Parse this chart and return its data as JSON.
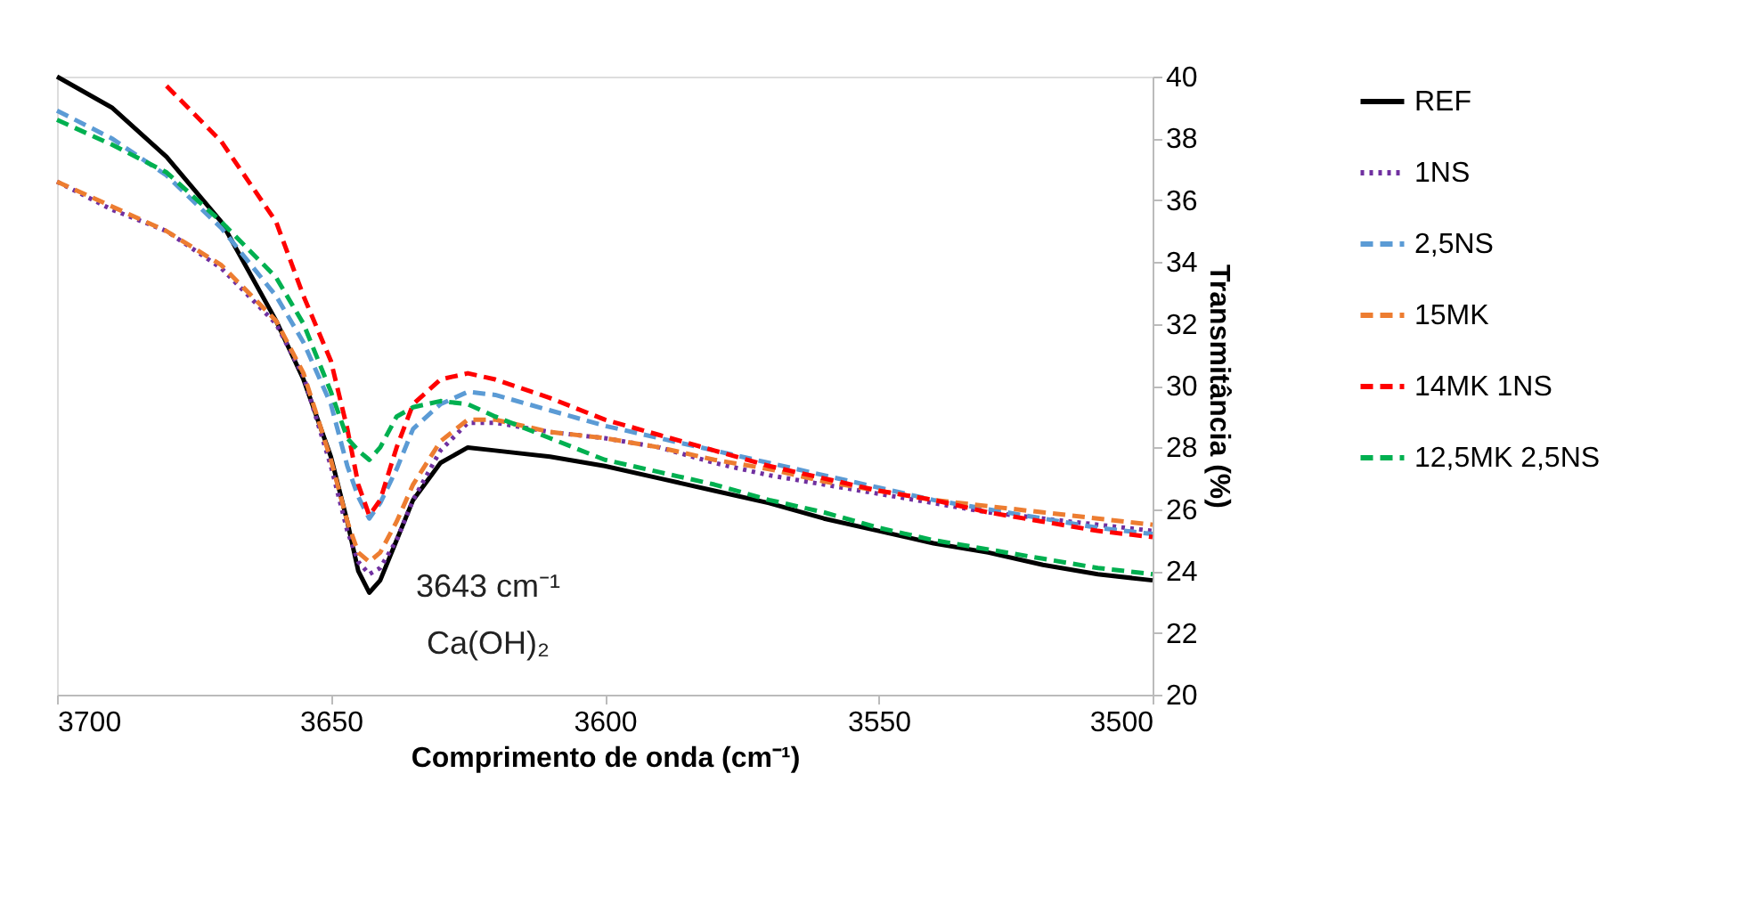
{
  "chart_data": {
    "type": "line",
    "xlabel": "Comprimento de onda (cm⁻¹)",
    "ylabel": "Transmitância (%)",
    "x": [
      3700,
      3690,
      3680,
      3670,
      3660,
      3655,
      3650,
      3647,
      3645,
      3643,
      3641,
      3638,
      3635,
      3630,
      3625,
      3620,
      3610,
      3600,
      3590,
      3580,
      3570,
      3560,
      3550,
      3540,
      3530,
      3520,
      3510,
      3500
    ],
    "xlim": [
      3700,
      3500
    ],
    "xticks": [
      3700,
      3650,
      3600,
      3550,
      3500
    ],
    "ylim": [
      20,
      40
    ],
    "yticks": [
      20,
      22,
      24,
      26,
      28,
      30,
      32,
      34,
      36,
      38,
      40
    ],
    "grid": false,
    "legend": "right",
    "marker": "none",
    "series": [
      {
        "name": "REF",
        "color": "#000000",
        "line_style": "solid",
        "values": [
          40.0,
          39.0,
          37.4,
          35.3,
          32.1,
          30.2,
          27.7,
          25.6,
          24.0,
          23.3,
          23.7,
          25.0,
          26.3,
          27.5,
          28.0,
          27.9,
          27.7,
          27.4,
          27.0,
          26.6,
          26.2,
          25.7,
          25.3,
          24.9,
          24.6,
          24.2,
          23.9,
          23.7
        ]
      },
      {
        "name": "1NS",
        "color": "#7030a0",
        "line_style": "dotted",
        "values": [
          36.6,
          35.7,
          35.0,
          33.8,
          32.0,
          30.3,
          27.4,
          25.3,
          24.3,
          23.9,
          24.1,
          25.0,
          26.3,
          27.9,
          28.8,
          28.8,
          28.5,
          28.3,
          28.0,
          27.5,
          27.1,
          26.8,
          26.5,
          26.2,
          25.9,
          25.7,
          25.5,
          25.3
        ]
      },
      {
        "name": "2,5NS",
        "color": "#5b9bd5",
        "line_style": "dashed",
        "values": [
          38.9,
          38.0,
          36.8,
          35.1,
          32.9,
          31.4,
          29.4,
          27.4,
          26.4,
          25.7,
          26.2,
          27.3,
          28.6,
          29.4,
          29.8,
          29.7,
          29.2,
          28.7,
          28.3,
          27.9,
          27.5,
          27.1,
          26.7,
          26.3,
          26.0,
          25.7,
          25.4,
          25.2
        ]
      },
      {
        "name": "15MK",
        "color": "#ed7d31",
        "line_style": "dashed",
        "values": [
          36.6,
          35.8,
          35.0,
          33.9,
          32.1,
          30.4,
          27.6,
          25.6,
          24.6,
          24.3,
          24.6,
          25.6,
          26.8,
          28.2,
          28.9,
          28.9,
          28.5,
          28.3,
          28.0,
          27.6,
          27.3,
          26.9,
          26.6,
          26.3,
          26.1,
          25.9,
          25.7,
          25.5
        ]
      },
      {
        "name": "14MK 1NS",
        "color": "#ff0000",
        "line_style": "dashed",
        "values": [
          null,
          null,
          39.7,
          37.9,
          35.3,
          32.9,
          30.8,
          28.6,
          26.8,
          25.8,
          26.3,
          28.0,
          29.4,
          30.2,
          30.4,
          30.2,
          29.6,
          28.9,
          28.4,
          27.9,
          27.4,
          27.0,
          26.6,
          26.3,
          25.9,
          25.6,
          25.3,
          25.1
        ]
      },
      {
        "name": "12,5MK 2,5NS",
        "color": "#00b050",
        "line_style": "dashed",
        "values": [
          38.6,
          37.8,
          36.9,
          35.3,
          33.5,
          32.0,
          29.8,
          28.3,
          27.9,
          27.6,
          28.0,
          29.0,
          29.3,
          29.5,
          29.4,
          29.0,
          28.3,
          27.6,
          27.2,
          26.8,
          26.3,
          25.9,
          25.4,
          25.0,
          24.7,
          24.4,
          24.1,
          23.9
        ]
      }
    ],
    "annotations": [
      "3643 cm⁻¹",
      "Ca(OH)₂"
    ]
  }
}
